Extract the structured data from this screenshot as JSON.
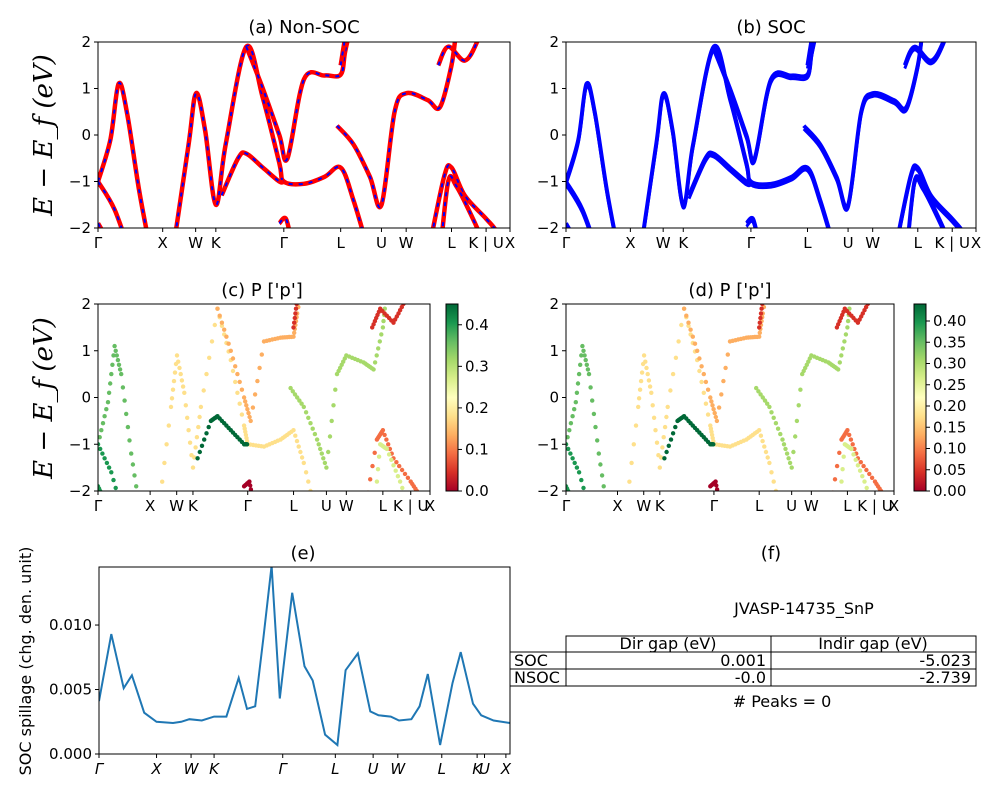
{
  "panels": [
    {
      "id": "a",
      "title": "(a) Non-SOC"
    },
    {
      "id": "b",
      "title": "(b) SOC"
    },
    {
      "id": "c",
      "title": "(c)  P ['p']"
    },
    {
      "id": "d",
      "title": "(d) P ['p']"
    },
    {
      "id": "e",
      "title": "(e)"
    },
    {
      "id": "f",
      "title": "(f)"
    }
  ],
  "ylabel_band": "E − E_f (eV)",
  "ylabel_spillage": "SOC spillage (chg. den. unit)",
  "band_ylim": [
    -2,
    2
  ],
  "band_yticks": [
    "2",
    "1",
    "0",
    "−1",
    "−2"
  ],
  "kpath_labels": [
    "Γ",
    "X",
    "W",
    "K",
    "Γ",
    "L",
    "U",
    "W",
    "L",
    "K | U",
    "X"
  ],
  "kpath_labels_e": [
    "Γ",
    "X",
    "W",
    "K",
    "Γ",
    "L",
    "U",
    "W",
    "L",
    "K",
    "U",
    "X"
  ],
  "colorbar_c": {
    "ticks": [
      "0.4",
      "0.3",
      "0.2",
      "0.1",
      "0.0"
    ],
    "range": [
      0,
      0.45
    ]
  },
  "colorbar_d": {
    "ticks": [
      "0.40",
      "0.35",
      "0.30",
      "0.25",
      "0.20",
      "0.15",
      "0.10",
      "0.05",
      "0.00"
    ],
    "range": [
      0,
      0.44
    ]
  },
  "colors": {
    "nonsoc_line": "#ff0000",
    "nonsoc_dash": "#0000ff",
    "soc_line": "#0000ff",
    "spillage_line": "#1f77b4"
  },
  "table": {
    "material": "JVASP-14735_SnP",
    "headers": [
      "Dir gap (eV)",
      "Indir gap (eV)"
    ],
    "rows": [
      {
        "label": "SOC",
        "dir": "0.001",
        "indir": "-5.023"
      },
      {
        "label": "NSOC",
        "dir": "-0.0",
        "indir": "-2.739"
      }
    ],
    "peaks": "# Peaks = 0"
  },
  "chart_data": [
    {
      "type": "line",
      "panel": "(e)",
      "title": "(e)",
      "ylabel": "SOC spillage (chg. den. unit)",
      "ylim": [
        0,
        0.0145
      ],
      "yticks": [
        "0.000",
        "0.005",
        "0.010"
      ],
      "x": [
        0,
        0.03,
        0.06,
        0.08,
        0.11,
        0.14,
        0.18,
        0.2,
        0.22,
        0.25,
        0.28,
        0.31,
        0.34,
        0.36,
        0.38,
        0.4,
        0.42,
        0.44,
        0.47,
        0.5,
        0.52,
        0.55,
        0.58,
        0.6,
        0.63,
        0.66,
        0.68,
        0.71,
        0.73,
        0.76,
        0.78,
        0.8,
        0.83,
        0.86,
        0.88,
        0.91,
        0.93,
        0.96,
        1.0
      ],
      "series": [
        {
          "values": [
            0.0041,
            0.0093,
            0.0051,
            0.0061,
            0.0032,
            0.0025,
            0.0024,
            0.0025,
            0.0027,
            0.0026,
            0.0029,
            0.0029,
            0.0059,
            0.0035,
            0.0037,
            0.009,
            0.0146,
            0.0043,
            0.0125,
            0.0068,
            0.0057,
            0.0015,
            0.0007,
            0.0065,
            0.0078,
            0.0033,
            0.003,
            0.0029,
            0.0026,
            0.0027,
            0.0037,
            0.0062,
            0.0007,
            0.0055,
            0.0079,
            0.0039,
            0.003,
            0.0026,
            0.0024
          ]
        }
      ]
    },
    {
      "type": "line",
      "panel": "(a)",
      "title": "(a) Non-SOC",
      "ylim": [
        -2,
        2
      ]
    },
    {
      "type": "line",
      "panel": "(b)",
      "title": "(b) SOC",
      "ylim": [
        -2,
        2
      ]
    },
    {
      "type": "scatter",
      "panel": "(c)",
      "title": "(c)  P ['p']",
      "ylim": [
        -2,
        2
      ]
    },
    {
      "type": "scatter",
      "panel": "(d)",
      "title": "(d) P ['p']",
      "ylim": [
        -2,
        2
      ]
    }
  ]
}
